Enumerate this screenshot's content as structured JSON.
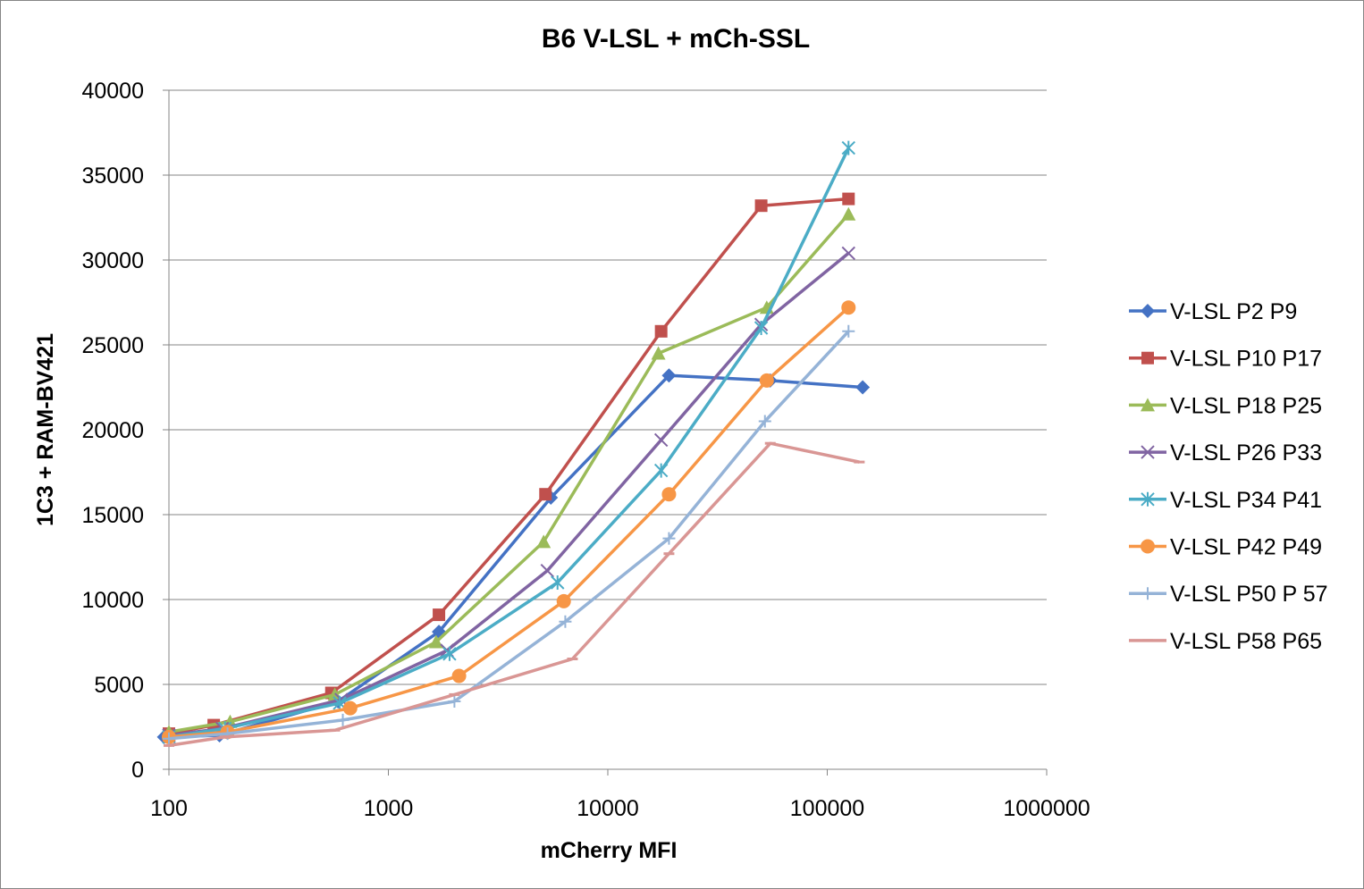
{
  "chart_data": {
    "type": "line",
    "title": "B6 V-LSL + mCh-SSL",
    "xlabel": "mCherry MFI",
    "ylabel": "1C3 + RAM-BV421",
    "x_scale": "log",
    "xlim": [
      100,
      1000000
    ],
    "ylim": [
      0,
      40000
    ],
    "x_ticks": [
      "100",
      "1000",
      "10000",
      "100000",
      "1000000"
    ],
    "y_ticks": [
      "0",
      "5000",
      "10000",
      "15000",
      "20000",
      "25000",
      "30000",
      "35000",
      "40000"
    ],
    "grid": "horizontal",
    "legend_position": "right",
    "series": [
      {
        "name": "V-LSL P2 P9",
        "color": "#4472c4",
        "marker": "diamond",
        "x": [
          95,
          170,
          590,
          1700,
          5500,
          19000,
          55000,
          145000
        ],
        "y": [
          1900,
          2000,
          4000,
          8100,
          16000,
          23200,
          22900,
          22500
        ]
      },
      {
        "name": "V-LSL P10 P17",
        "color": "#c0504d",
        "marker": "square",
        "x": [
          100,
          160,
          550,
          1700,
          5200,
          17500,
          50000,
          125000
        ],
        "y": [
          2100,
          2600,
          4500,
          9100,
          16200,
          25800,
          33200,
          33600
        ]
      },
      {
        "name": "V-LSL P18 P25",
        "color": "#9bbb59",
        "marker": "triangle",
        "x": [
          100,
          190,
          570,
          1650,
          5100,
          17000,
          53000,
          125000
        ],
        "y": [
          2200,
          2800,
          4400,
          7500,
          13400,
          24500,
          27200,
          32700
        ]
      },
      {
        "name": "V-LSL P26 P33",
        "color": "#8064a2",
        "marker": "x",
        "x": [
          100,
          175,
          610,
          1850,
          5300,
          17500,
          50000,
          125000
        ],
        "y": [
          2000,
          2400,
          4100,
          7000,
          11700,
          19400,
          26200,
          30400
        ]
      },
      {
        "name": "V-LSL P34 P41",
        "color": "#4bacc6",
        "marker": "star",
        "x": [
          100,
          180,
          600,
          1900,
          5900,
          17500,
          50000,
          125000
        ],
        "y": [
          1900,
          2400,
          3900,
          6800,
          11000,
          17600,
          26000,
          36600
        ]
      },
      {
        "name": "V-LSL P42 P49",
        "color": "#f79646",
        "marker": "circle",
        "x": [
          100,
          185,
          670,
          2100,
          6300,
          19000,
          53000,
          125000
        ],
        "y": [
          1900,
          2200,
          3600,
          5500,
          9900,
          16200,
          22900,
          27200
        ]
      },
      {
        "name": "V-LSL P50 P 57",
        "color": "#95b3d7",
        "marker": "plus",
        "x": [
          100,
          185,
          620,
          2000,
          6400,
          19000,
          52000,
          125000
        ],
        "y": [
          1800,
          2100,
          2900,
          4000,
          8700,
          13600,
          20500,
          25800
        ]
      },
      {
        "name": "V-LSL P58 P65",
        "color": "#d99694",
        "marker": "dash",
        "x": [
          100,
          180,
          570,
          2000,
          6900,
          19000,
          55000,
          140000
        ],
        "y": [
          1400,
          1900,
          2300,
          4400,
          6500,
          12700,
          19200,
          18100
        ]
      }
    ]
  }
}
